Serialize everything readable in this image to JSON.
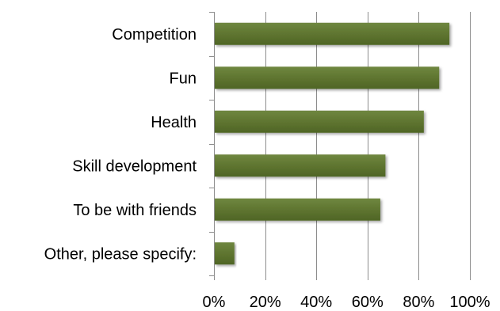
{
  "chart_data": {
    "type": "bar",
    "orientation": "horizontal",
    "categories": [
      "Competition",
      "Fun",
      "Health",
      "Skill development",
      "To be with friends",
      "Other, please specify:"
    ],
    "values": [
      0.92,
      0.88,
      0.82,
      0.67,
      0.65,
      0.08
    ],
    "xlim": [
      0,
      1
    ],
    "x_ticks": [
      0,
      0.2,
      0.4,
      0.6,
      0.8,
      1.0
    ],
    "x_tick_labels": [
      "0%",
      "20%",
      "40%",
      "60%",
      "80%",
      "100%"
    ],
    "title": "",
    "xlabel": "",
    "ylabel": "",
    "grid": true,
    "legend": "none",
    "bar_color": "#5f7530"
  }
}
